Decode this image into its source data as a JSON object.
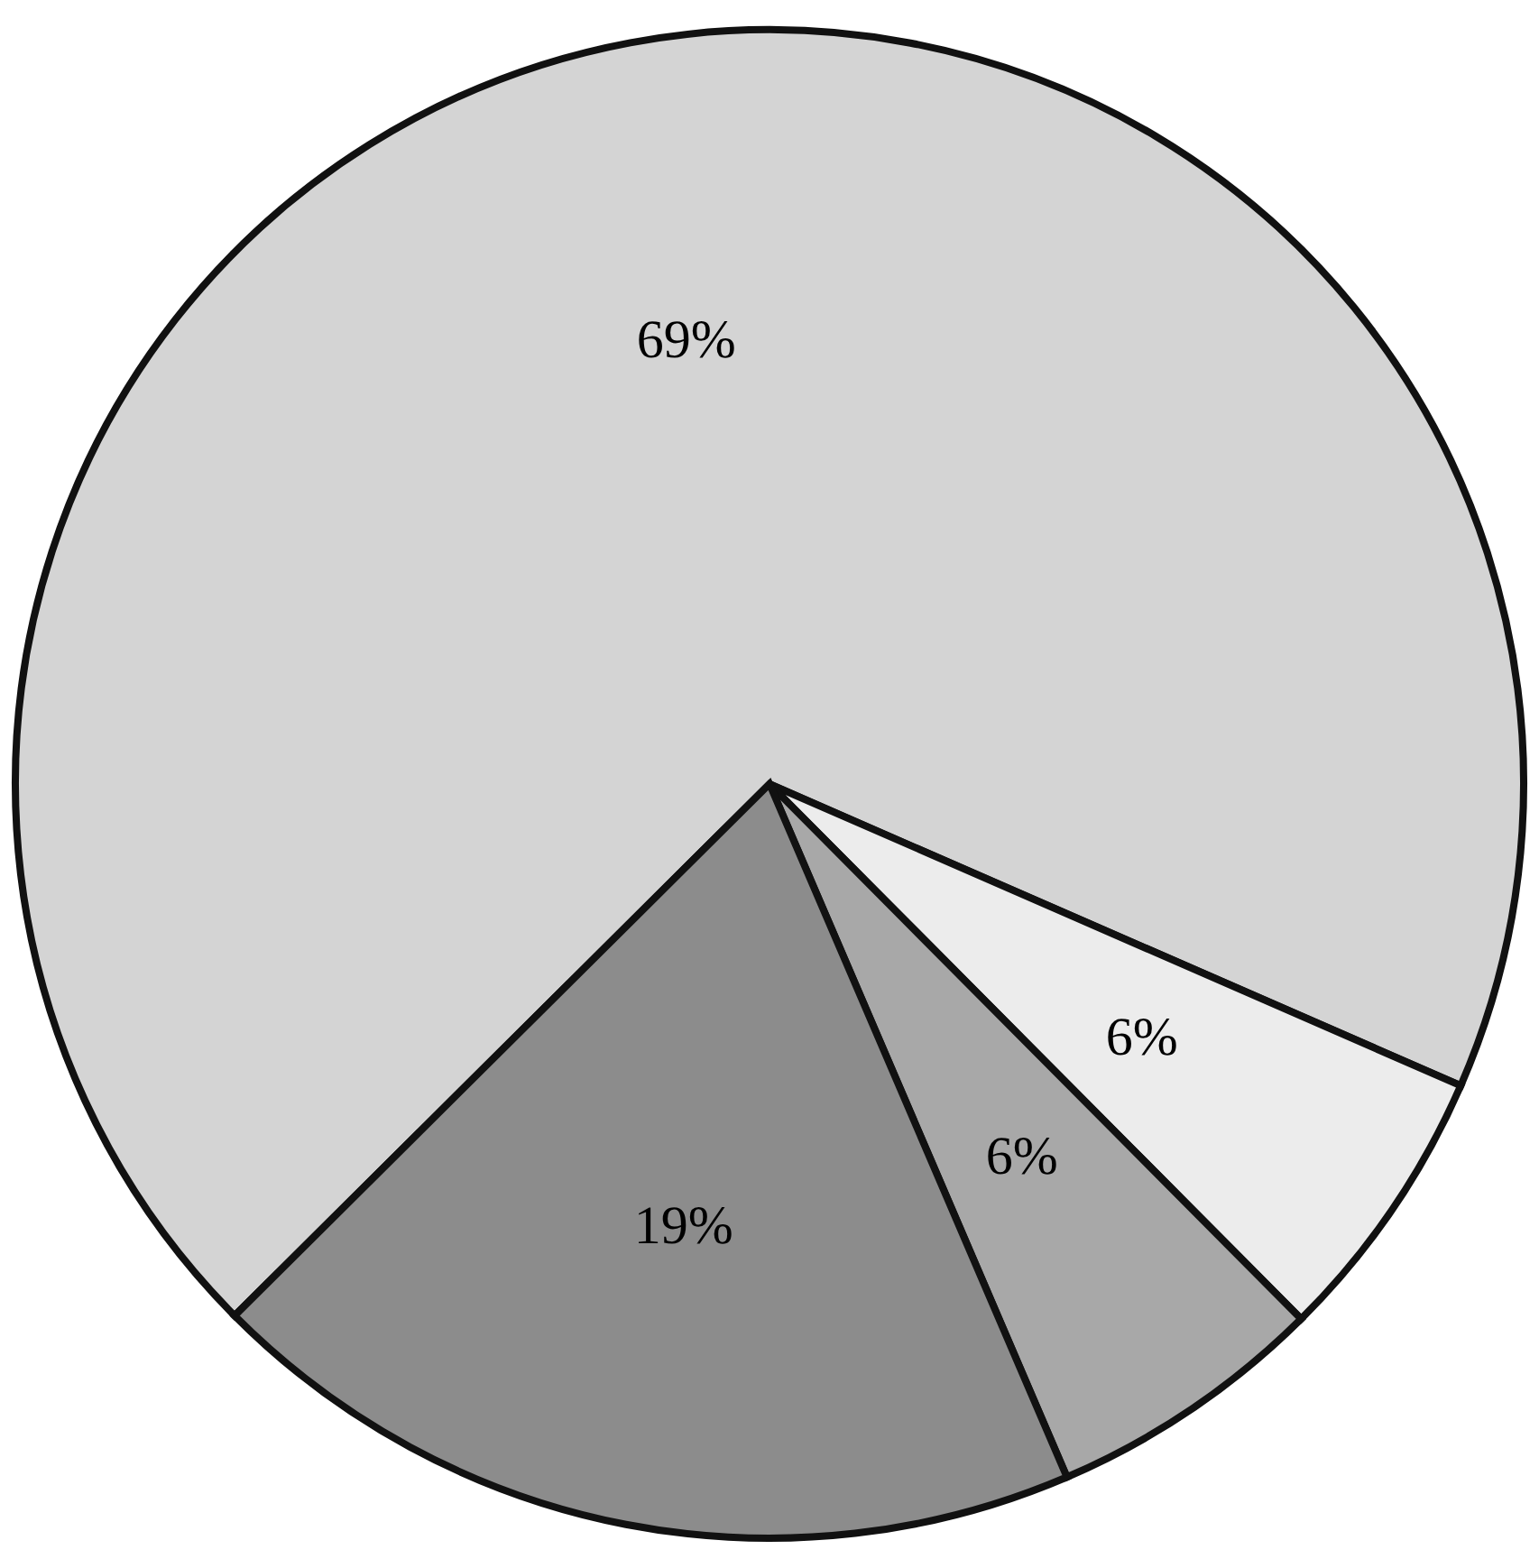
{
  "chart_data": {
    "type": "pie",
    "categories": [
      null,
      null,
      null,
      null
    ],
    "values": [
      69,
      6,
      6,
      19
    ],
    "value_labels": [
      "69%",
      "6%",
      "6%",
      "19%"
    ],
    "colors": [
      "#d4d4d4",
      "#ececec",
      "#a8a8a8",
      "#8c8c8c"
    ]
  }
}
